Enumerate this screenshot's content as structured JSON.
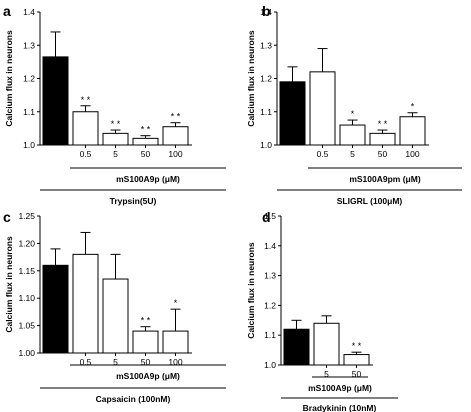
{
  "chart_data": [
    {
      "panel": "a",
      "type": "bar",
      "ylabel": "Calcium flux in neurons",
      "ylim": [
        1.0,
        1.4
      ],
      "yticks": [
        "1.0",
        "1.1",
        "1.2",
        "1.3",
        "1.4"
      ],
      "categories": [
        "",
        "0.5",
        "5",
        "50",
        "100"
      ],
      "values": [
        1.265,
        1.1,
        1.035,
        1.02,
        1.055
      ],
      "errors": [
        0.075,
        0.018,
        0.01,
        0.008,
        0.012
      ],
      "fills": [
        "#000000",
        "#ffffff",
        "#ffffff",
        "#ffffff",
        "#ffffff"
      ],
      "significance": [
        "",
        "* *",
        "* *",
        "* *",
        "* *"
      ],
      "concentration_label": "mS100A9p (μM)",
      "stimulus_label": "Trypsin(5U)"
    },
    {
      "panel": "b",
      "type": "bar",
      "ylabel": "Calcium flux in neurons",
      "ylim": [
        1.0,
        1.4
      ],
      "yticks": [
        "1.0",
        "1.1",
        "1.2",
        "1.3",
        "1.4"
      ],
      "categories": [
        "",
        "0.5",
        "5",
        "50",
        "100"
      ],
      "values": [
        1.19,
        1.22,
        1.06,
        1.035,
        1.085
      ],
      "errors": [
        0.045,
        0.07,
        0.015,
        0.01,
        0.012
      ],
      "fills": [
        "#000000",
        "#ffffff",
        "#ffffff",
        "#ffffff",
        "#ffffff"
      ],
      "significance": [
        "",
        "",
        "*",
        "* *",
        "*"
      ],
      "concentration_label": "mS100A9pm (μM)",
      "stimulus_label": "SLIGRL (100μM)"
    },
    {
      "panel": "c",
      "type": "bar",
      "ylabel": "Calcium flux in neurons",
      "ylim": [
        1.0,
        1.25
      ],
      "yticks": [
        "1.00",
        "1.05",
        "1.10",
        "1.15",
        "1.20",
        "1.25"
      ],
      "categories": [
        "",
        "0.5",
        "5",
        "50",
        "100"
      ],
      "values": [
        1.16,
        1.18,
        1.135,
        1.04,
        1.04
      ],
      "errors": [
        0.03,
        0.04,
        0.045,
        0.008,
        0.04
      ],
      "fills": [
        "#000000",
        "#ffffff",
        "#ffffff",
        "#ffffff",
        "#ffffff"
      ],
      "significance": [
        "",
        "",
        "",
        "* *",
        "*"
      ],
      "concentration_label": "mS100A9p (μM)",
      "stimulus_label": "Capsaicin (100nM)"
    },
    {
      "panel": "d",
      "type": "bar",
      "ylabel": "Calcium flux in neurons",
      "ylim": [
        1.0,
        1.5
      ],
      "yticks": [
        "1.0",
        "1.1",
        "1.2",
        "1.3",
        "1.4",
        "1.5"
      ],
      "categories": [
        "",
        "5",
        "50"
      ],
      "values": [
        1.12,
        1.14,
        1.035
      ],
      "errors": [
        0.03,
        0.025,
        0.008
      ],
      "fills": [
        "#000000",
        "#ffffff",
        "#ffffff"
      ],
      "significance": [
        "",
        "",
        "* *"
      ],
      "concentration_label": "mS100A9p (μM)",
      "stimulus_label": "Bradykinin (10nM)"
    }
  ]
}
